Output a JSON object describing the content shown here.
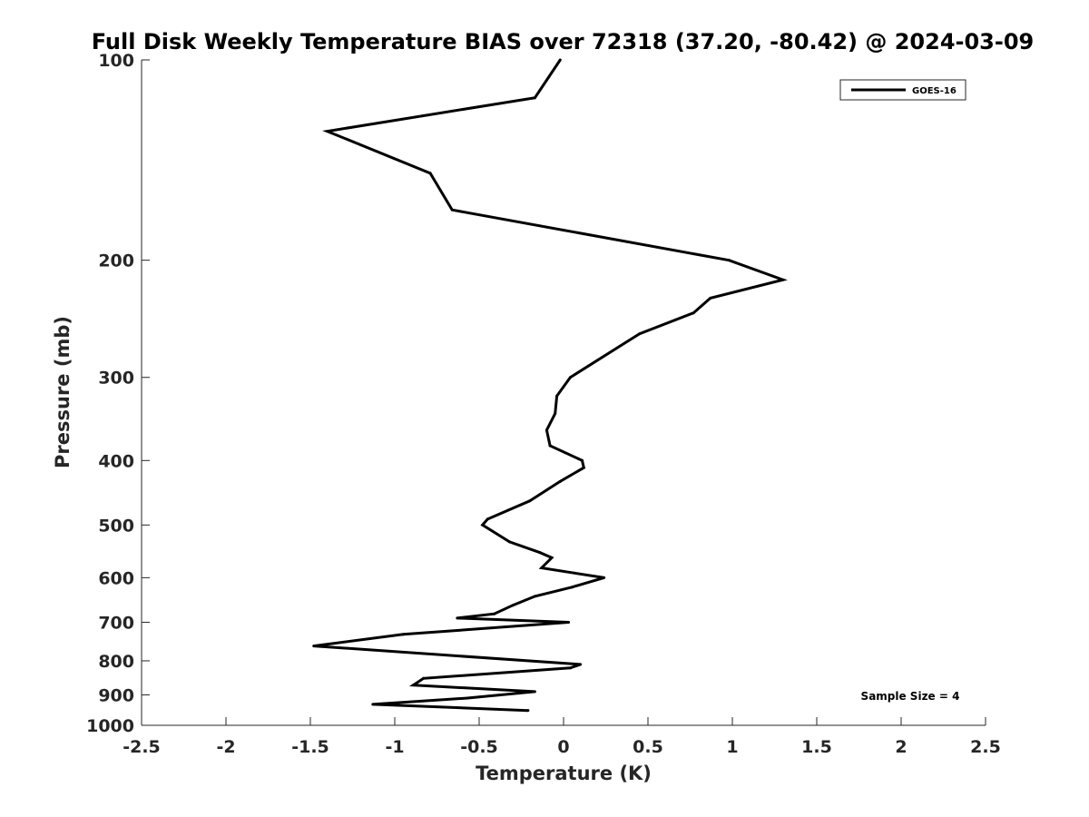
{
  "chart_data": {
    "type": "line",
    "title": "Full Disk Weekly Temperature BIAS over 72318 (37.20, -80.42) @ 2024-03-09",
    "xlabel": "Temperature (K)",
    "ylabel": "Pressure (mb)",
    "xlim": [
      -2.5,
      2.5
    ],
    "ylim": [
      100,
      1000
    ],
    "yscale": "log",
    "yreversed": true,
    "grid": false,
    "legend_position": "top-right",
    "x_ticks": [
      -2.5,
      -2,
      -1.5,
      -1,
      -0.5,
      0,
      0.5,
      1,
      1.5,
      2,
      2.5
    ],
    "x_tick_labels": [
      "-2.5",
      "-2",
      "-1.5",
      "-1",
      "-0.5",
      "0",
      "0.5",
      "1",
      "1.5",
      "2",
      "2.5"
    ],
    "y_ticks": [
      100,
      200,
      300,
      400,
      500,
      600,
      700,
      800,
      900,
      1000
    ],
    "y_tick_labels": [
      "100",
      "200",
      "300",
      "400",
      "500",
      "600",
      "700",
      "800",
      "900",
      "1000"
    ],
    "annotation": "Sample Size = 4",
    "series": [
      {
        "name": "GOES-16",
        "color": "#000000",
        "x": [
          -0.02,
          -0.17,
          -1.4,
          -0.79,
          -0.66,
          0.98,
          1.3,
          0.87,
          0.77,
          0.45,
          0.04,
          -0.04,
          -0.05,
          -0.1,
          -0.08,
          0.11,
          0.12,
          -0.02,
          -0.2,
          -0.45,
          -0.48,
          -0.32,
          -0.14,
          -0.07,
          -0.13,
          0.24,
          0.05,
          -0.17,
          -0.3,
          -0.41,
          -0.63,
          0.03,
          -0.95,
          -1.48,
          0.1,
          0.04,
          -0.83,
          -0.89,
          -0.17,
          -0.57,
          -1.13,
          -0.21
        ],
        "y": [
          100,
          114,
          128,
          148,
          168,
          200,
          214,
          228,
          240,
          258,
          300,
          320,
          340,
          360,
          380,
          400,
          410,
          430,
          460,
          490,
          500,
          530,
          550,
          560,
          580,
          600,
          620,
          640,
          660,
          680,
          690,
          700,
          730,
          760,
          810,
          820,
          850,
          870,
          890,
          910,
          930,
          950
        ]
      }
    ]
  }
}
